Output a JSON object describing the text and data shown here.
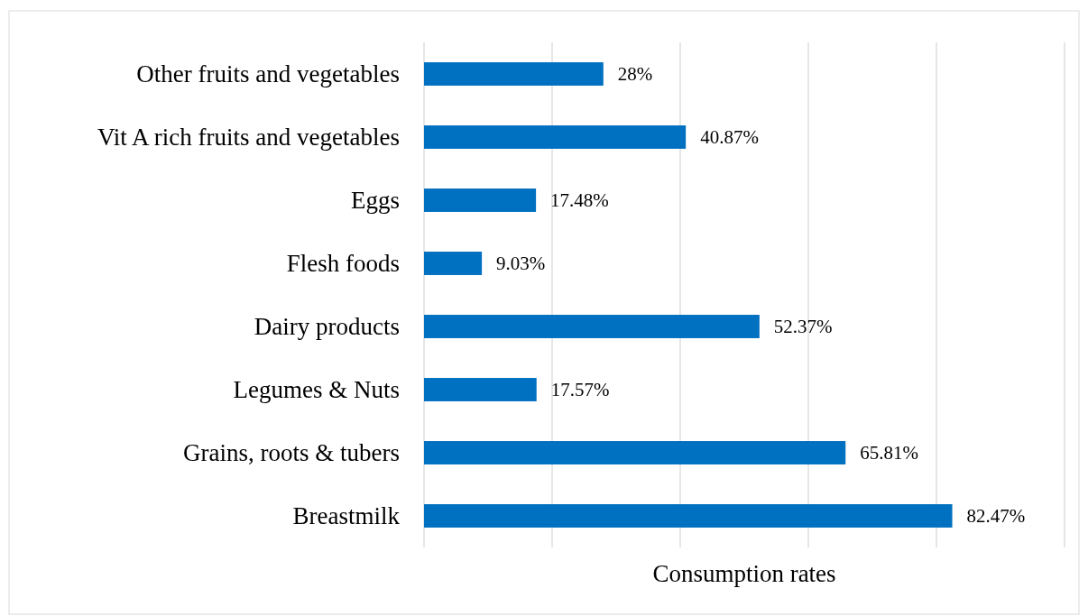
{
  "chart_data": {
    "type": "bar",
    "orientation": "horizontal",
    "xlabel": "Consumption rates",
    "categories": [
      "Other fruits and vegetables",
      "Vit A rich fruits and vegetables",
      "Eggs",
      "Flesh foods",
      "Dairy products",
      "Legumes & Nuts",
      "Grains, roots & tubers",
      "Breastmilk"
    ],
    "values": [
      28,
      40.87,
      17.48,
      9.03,
      52.37,
      17.57,
      65.81,
      82.47
    ],
    "value_labels": [
      "28%",
      "40.87%",
      "17.48%",
      "9.03%",
      "52.37%",
      "17.57%",
      "65.81%",
      "82.47%"
    ],
    "color": "#0070c0",
    "xlim": [
      0,
      100
    ],
    "xticks": [
      {
        "value": 0,
        "label": null
      },
      {
        "value": 20,
        "label": null
      },
      {
        "value": 40,
        "label": null
      },
      {
        "value": 60,
        "label": null
      },
      {
        "value": 80,
        "label": null
      },
      {
        "value": 100,
        "label": null
      }
    ],
    "grid": "x",
    "tick_labels": "y"
  }
}
